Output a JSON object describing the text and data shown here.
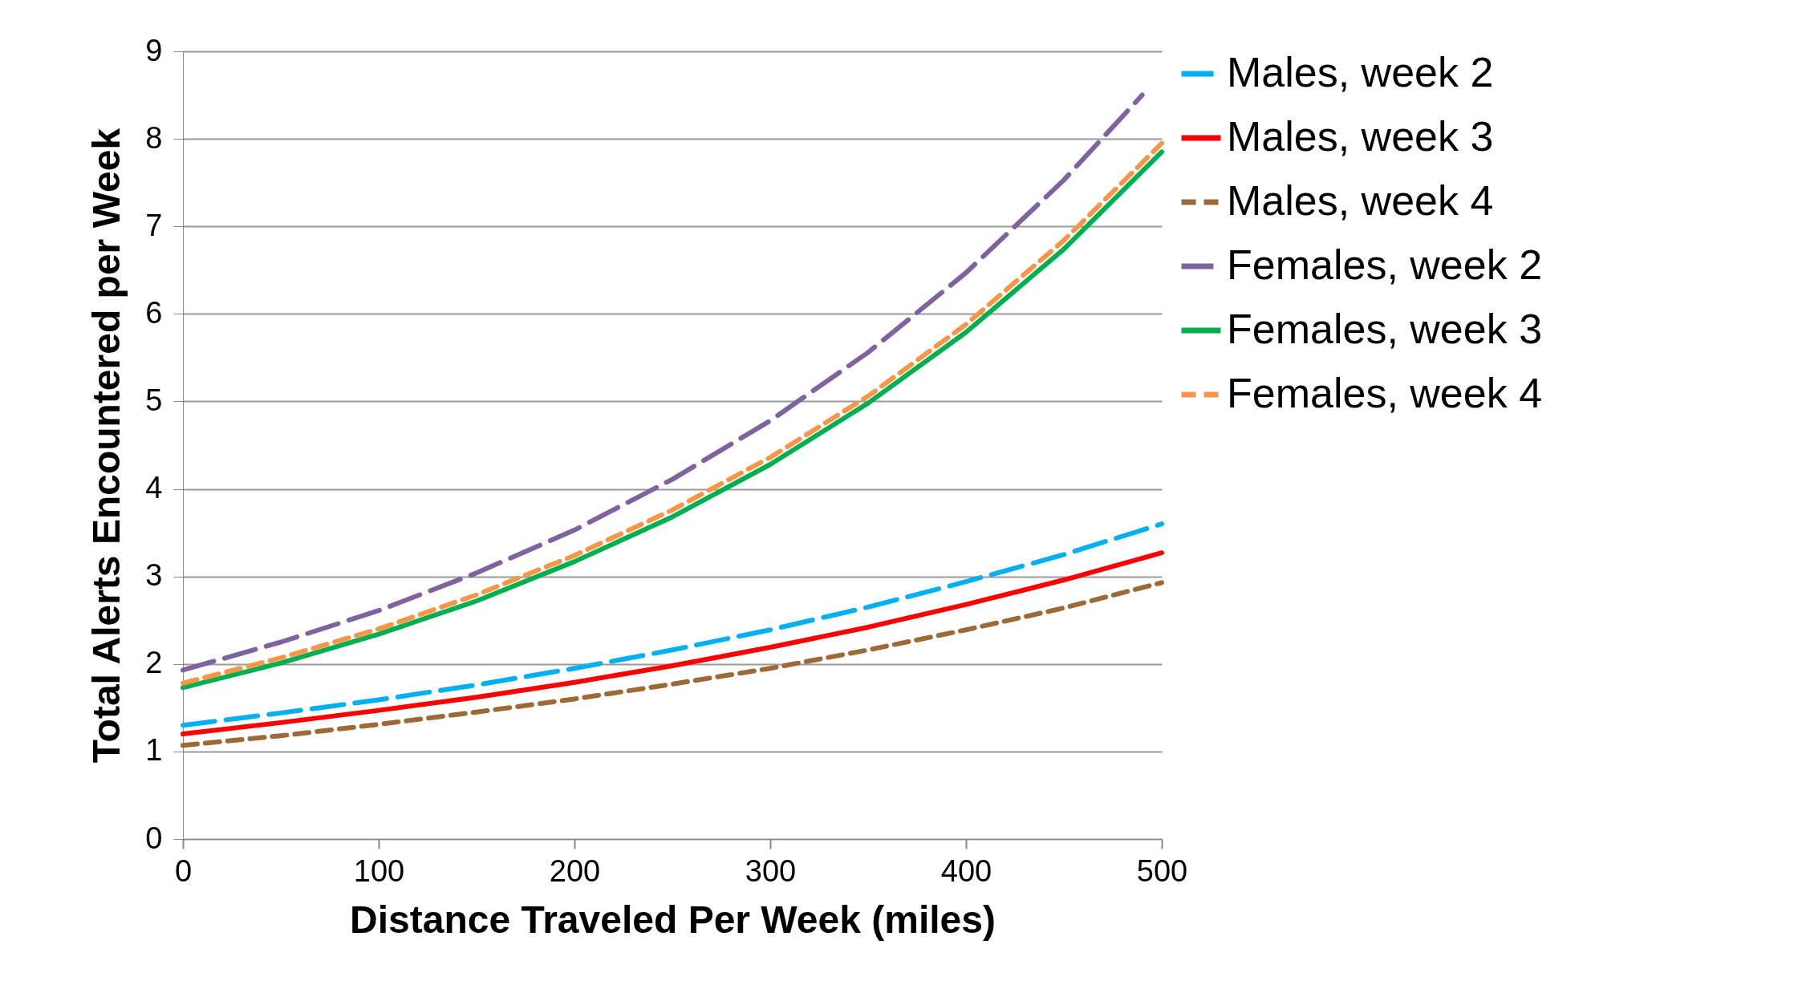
{
  "chart_data": {
    "type": "line",
    "xlabel": "Distance Traveled Per Week (miles)",
    "ylabel": "Total Alerts Encountered per Week",
    "x": [
      0,
      50,
      100,
      150,
      200,
      250,
      300,
      350,
      400,
      450,
      500
    ],
    "series": [
      {
        "name": "Males, week 2",
        "color": "#00b0f0",
        "line_style": "dashed",
        "values": [
          1.3,
          1.44,
          1.59,
          1.76,
          1.95,
          2.16,
          2.39,
          2.65,
          2.94,
          3.25,
          3.6
        ]
      },
      {
        "name": "Males, week 3",
        "color": "#ff0000",
        "line_style": "solid",
        "values": [
          1.2,
          1.33,
          1.47,
          1.62,
          1.79,
          1.98,
          2.19,
          2.42,
          2.68,
          2.96,
          3.27
        ]
      },
      {
        "name": "Males, week 4",
        "color": "#9c6a36",
        "line_style": "dotted",
        "values": [
          1.07,
          1.18,
          1.31,
          1.45,
          1.6,
          1.77,
          1.95,
          2.16,
          2.39,
          2.64,
          2.93
        ]
      },
      {
        "name": "Females, week 2",
        "color": "#7f62a0",
        "line_style": "dashed",
        "x": [
          0,
          50,
          100,
          150,
          200,
          250,
          300,
          350,
          400,
          450,
          490
        ],
        "values": [
          1.93,
          2.25,
          2.61,
          3.04,
          3.53,
          4.11,
          4.78,
          5.56,
          6.47,
          7.53,
          8.5
        ]
      },
      {
        "name": "Females, week 3",
        "color": "#00b050",
        "line_style": "solid",
        "values": [
          1.73,
          2.01,
          2.34,
          2.72,
          3.17,
          3.68,
          4.28,
          4.98,
          5.79,
          6.74,
          7.85
        ]
      },
      {
        "name": "Females, week 4",
        "color": "#f79646",
        "line_style": "dotted",
        "values": [
          1.78,
          2.07,
          2.4,
          2.79,
          3.24,
          3.76,
          4.36,
          5.06,
          5.88,
          6.84,
          7.95
        ]
      }
    ],
    "xlim": [
      0,
      500
    ],
    "xticks": [
      0,
      100,
      200,
      300,
      400,
      500
    ],
    "ylim": [
      0,
      9
    ],
    "yticks": [
      0,
      1,
      2,
      3,
      4,
      5,
      6,
      7,
      8,
      9
    ],
    "grid": "y",
    "legend": "right",
    "marker": "none"
  }
}
